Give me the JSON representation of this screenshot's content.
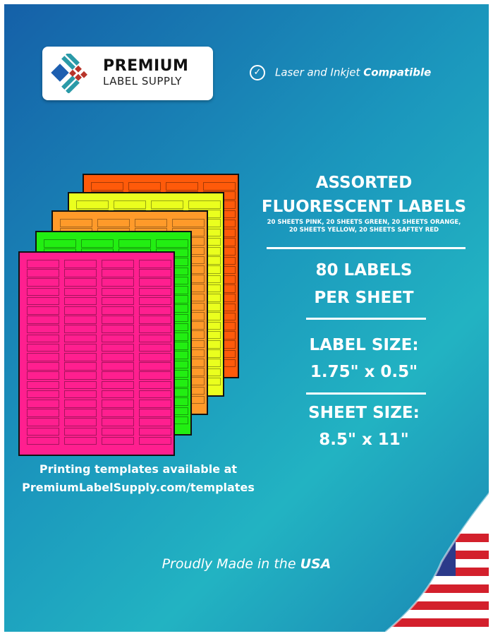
{
  "brand": {
    "line1": "PREMIUM",
    "line2": "LABEL SUPPLY"
  },
  "compat": {
    "prefix": "Laser and Inkjet ",
    "bold": "Compatible",
    "icon": "check-circle-icon"
  },
  "headline": {
    "line1": "ASSORTED",
    "line2": "FLUORESCENT LABELS",
    "sub1": "20 SHEETS PINK, 20 SHEETS GREEN, 20 SHEETS ORANGE,",
    "sub2": "20 SHEETS YELLOW, 20 SHEETS SAFTEY RED"
  },
  "labels_per_sheet": {
    "line1": "80 LABELS",
    "line2": "PER SHEET"
  },
  "label_size": {
    "line1": "LABEL SIZE:",
    "line2": "1.75\" x 0.5\""
  },
  "sheet_size": {
    "line1": "SHEET SIZE:",
    "line2": "8.5\" x 11\""
  },
  "templates": {
    "line1": "Printing templates available at",
    "line2": "PremiumLabelSupply.com/templates"
  },
  "usa": {
    "prefix": "Proudly Made in the ",
    "bold": "USA"
  },
  "sheets": [
    {
      "name": "safety-red",
      "color": "#ff5a0a"
    },
    {
      "name": "yellow",
      "color": "#eaff1e"
    },
    {
      "name": "orange",
      "color": "#ff9a2a"
    },
    {
      "name": "green",
      "color": "#22ee12"
    },
    {
      "name": "pink",
      "color": "#ff1f8f"
    }
  ],
  "grid": {
    "columns": 4,
    "rows": 20
  }
}
